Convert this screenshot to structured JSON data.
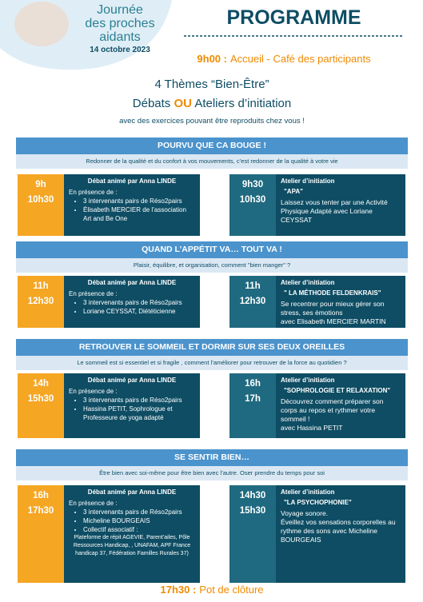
{
  "header": {
    "logo_lines": [
      "Journée",
      "des proches",
      "aidants"
    ],
    "date": "14 octobre 2023",
    "title": "PROGRAMME",
    "welcome": {
      "time": "9h00 :",
      "text": "Accueil - Café des participants"
    }
  },
  "intro": {
    "line1": "4 Thèmes  “Bien-Être”",
    "line2": [
      "Débats ",
      "OU",
      " Ateliers d’initiation"
    ],
    "line3": "avec des exercices pouvant être reproduits chez vous !"
  },
  "themes": [
    {
      "title": "POURVU QUE CA BOUGE !",
      "subtitle": "Redonner de la qualité et du confort à vos mouvements, c’est redonner de la qualité à votre vie",
      "debate": {
        "times": [
          "9h",
          "10h30"
        ],
        "title": "Débat animé par Anna LINDE",
        "intro": "En présence de :",
        "bullets": [
          "3 intervenants pairs de Réso2pairs",
          "Élisabeth MERCIER de l’association Art and Be One"
        ]
      },
      "atelier": {
        "times": [
          "9h30",
          "10h30"
        ],
        "title": "Atelier d’initiation",
        "name": "\"APA\"",
        "lines": [
          "Laissez vous tenter par une Activité Physique Adapté avec Loriane CEYSSAT"
        ]
      }
    },
    {
      "title": "QUAND L’APPÉTIT VA…  TOUT VA !",
      "subtitle": "Plaisir, équilibre, et organisation, comment \"bien manger\" ?",
      "debate": {
        "times": [
          "11h",
          "12h30"
        ],
        "title": "Débat animé par Anna LINDE",
        "intro": "En présence de :",
        "bullets": [
          "3 intervenants pairs de Réso2pairs",
          "Loriane CEYSSAT, Diététicienne"
        ]
      },
      "atelier": {
        "times": [
          "11h",
          "12h30"
        ],
        "title": "Atelier d’initiation",
        "name": "\" LA MÉTHODE FELDENKRAIS\"",
        "lines": [
          "Se recentrer pour mieux gérer son stress, ses émotions",
          "avec Elisabeth MERCIER MARTIN"
        ]
      }
    },
    {
      "title": "RETROUVER LE SOMMEIL ET DORMIR SUR SES DEUX OREILLES",
      "subtitle": "Le sommeil est si essentiel et si fragile , comment l’améliorer pour retrouver de la force au quotidien ?",
      "debate": {
        "times": [
          "14h",
          "15h30"
        ],
        "title": "Débat animé par Anna LINDE",
        "intro": "En présence de :",
        "bullets": [
          "3 intervenants pairs de Réso2pairs",
          "Hassina PETIT, Sophrologue et Professeure de yoga adapté"
        ]
      },
      "atelier": {
        "times": [
          "16h",
          "17h"
        ],
        "title": "Atelier d’initiation",
        "name": "\"SOPHROLOGIE ET RELAXATION\"",
        "lines": [
          "Découvrez comment préparer son corps au repos et rythmer votre sommeil !",
          " avec Hassina PETIT"
        ]
      }
    },
    {
      "title": "SE SENTIR BIEN…",
      "subtitle": "Être bien avec soi-même pour être bien avec l’autre. Oser prendre du temps pour soi",
      "debate": {
        "times": [
          "16h",
          "17h30"
        ],
        "title": "Débat animé par Anna LINDE",
        "intro": "En présence de :",
        "bullets": [
          "3 intervenants pairs de  Réso2pairs",
          "Micheline BOURGEAIS",
          "Collectif associatif :"
        ],
        "note": "Plateforme de répit AGEVIE, Parent’ailes, Pôle Ressources Handicap, , UNAFAM, APF France handicap 37, Fédération Familles Rurales 37)"
      },
      "atelier": {
        "times": [
          "14h30",
          "15h30"
        ],
        "title": "Atelier d’initiation",
        "name": "\"LA PSYCHOPHONIE\"",
        "lines": [
          "Voyage sonore.",
          "Éveillez vos sensations corporelles au rythme des sons avec Micheline BOURGEAIS"
        ]
      }
    }
  ],
  "closing": {
    "time": "17h30 :",
    "text": "Pot de clôture"
  }
}
